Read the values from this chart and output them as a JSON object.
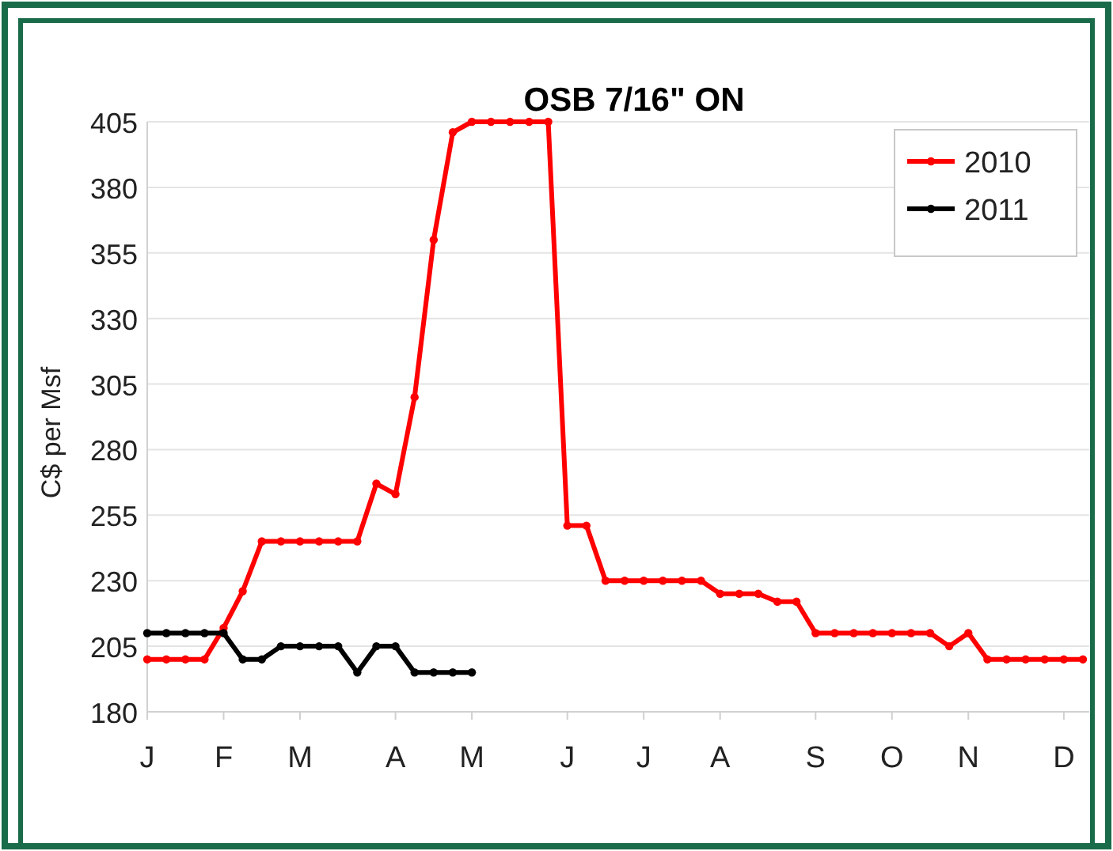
{
  "chart_data": {
    "type": "line",
    "title": "OSB 7/16\" ON",
    "ylabel": "C$ per Msf",
    "categories": [
      "J",
      null,
      null,
      null,
      "F",
      null,
      null,
      null,
      "M",
      null,
      null,
      null,
      null,
      "A",
      null,
      null,
      null,
      "M",
      null,
      null,
      null,
      null,
      "J",
      null,
      null,
      null,
      "J",
      null,
      null,
      null,
      "A",
      null,
      null,
      null,
      null,
      "S",
      null,
      null,
      null,
      "O",
      null,
      null,
      null,
      "N",
      null,
      null,
      null,
      null,
      "D",
      null
    ],
    "ylim": [
      180,
      405
    ],
    "yticks": [
      180,
      205,
      230,
      255,
      280,
      305,
      330,
      355,
      380,
      405
    ],
    "grid": "y",
    "legend": "top right",
    "marker": "circle",
    "line_style": "solid",
    "series": [
      {
        "name": "2010",
        "color": "#ff0000",
        "values": [
          200,
          200,
          200,
          200,
          212,
          226,
          245,
          245,
          245,
          245,
          245,
          245,
          267,
          263,
          300,
          360,
          401,
          405,
          405,
          405,
          405,
          405,
          251,
          251,
          230,
          230,
          230,
          230,
          230,
          230,
          225,
          225,
          225,
          222,
          222,
          210,
          210,
          210,
          210,
          210,
          210,
          210,
          205,
          210,
          200,
          200,
          200,
          200,
          200,
          200
        ]
      },
      {
        "name": "2011",
        "color": "#000000",
        "values": [
          210,
          210,
          210,
          210,
          210,
          200,
          200,
          205,
          205,
          205,
          205,
          195,
          205,
          205,
          195,
          195,
          195,
          195,
          null,
          null,
          null,
          null,
          null,
          null,
          null,
          null,
          null,
          null,
          null,
          null,
          null,
          null,
          null,
          null,
          null,
          null,
          null,
          null,
          null,
          null,
          null,
          null,
          null,
          null,
          null,
          null,
          null,
          null,
          null,
          null
        ]
      }
    ]
  }
}
